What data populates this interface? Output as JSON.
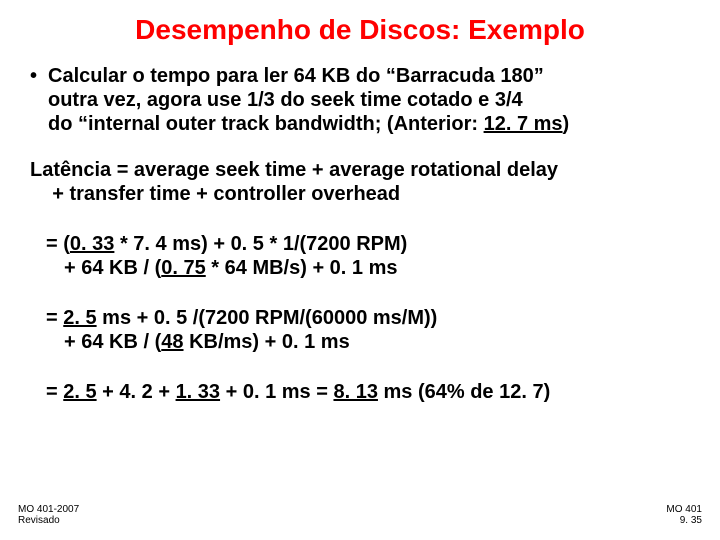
{
  "title": "Desempenho de Discos: Exemplo",
  "title_color": "#ff0000",
  "text_color": "#000000",
  "background_color": "#ffffff",
  "font_family": "Comic Sans MS",
  "bullet": {
    "marker": "•",
    "l1": "Calcular o tempo para ler 64 KB do “Barracuda 180”",
    "l2": "outra vez, agora use 1/3 do seek time cotado e  3/4",
    "l3a": "do “internal outer track bandwidth; (Anterior: ",
    "l3b": "12. 7 ms",
    "l3c": ")"
  },
  "latency": {
    "l1": "Latência =  average seek time + average rotational delay",
    "l2": "+ transfer time + controller overhead"
  },
  "calc1": {
    "eq": "= (",
    "a": "0. 33",
    "b": " * 7. 4 ms) + 0. 5 * 1/(7200 RPM)",
    "c": "+ 64 KB / (",
    "d": "0. 75",
    "e": " * 64 MB/s) + 0. 1 ms"
  },
  "calc2": {
    "eq": "= ",
    "a": "2. 5",
    "b": " ms + 0. 5  /(7200 RPM/(60000 ms/M))",
    "c": "+ 64 KB / (",
    "d": "48",
    "e": " KB/ms) + 0. 1 ms"
  },
  "calc3": {
    "eq": "= ",
    "a": "2. 5",
    "b": " + 4. 2 + ",
    "c": "1. 33",
    "d": " + 0. 1 ms = ",
    "e": "8. 13",
    "f": " ms (64% de 12. 7)"
  },
  "footer_left": {
    "l1": "MO 401-2007",
    "l2": "Revisado"
  },
  "footer_right": {
    "l1": "MO 401",
    "l2": "9. 35"
  }
}
